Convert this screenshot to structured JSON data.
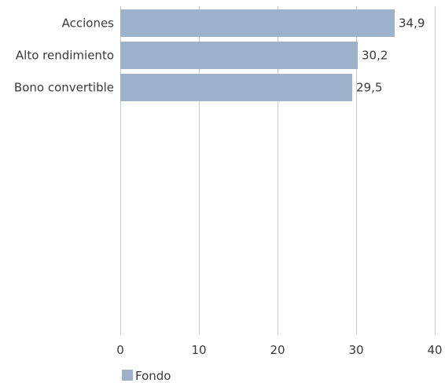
{
  "chart_data": {
    "type": "bar",
    "orientation": "horizontal",
    "categories": [
      "Acciones",
      "Alto rendimiento",
      "Bono convertible"
    ],
    "series": [
      {
        "name": "Fondo",
        "values": [
          34.9,
          30.2,
          29.5
        ],
        "value_labels": [
          "34,9",
          "30,2",
          "29,5"
        ],
        "color": "#9db1cb"
      }
    ],
    "xlim": [
      0,
      40
    ],
    "x_ticks": [
      0,
      10,
      20,
      30,
      40
    ],
    "x_tick_labels": [
      "0",
      "10",
      "20",
      "30",
      "40"
    ],
    "grid": true,
    "grid_color": "#c9c9c9",
    "legend": {
      "position": "bottom-left",
      "entries": [
        "Fondo"
      ]
    },
    "title": "",
    "xlabel": "",
    "ylabel": ""
  }
}
